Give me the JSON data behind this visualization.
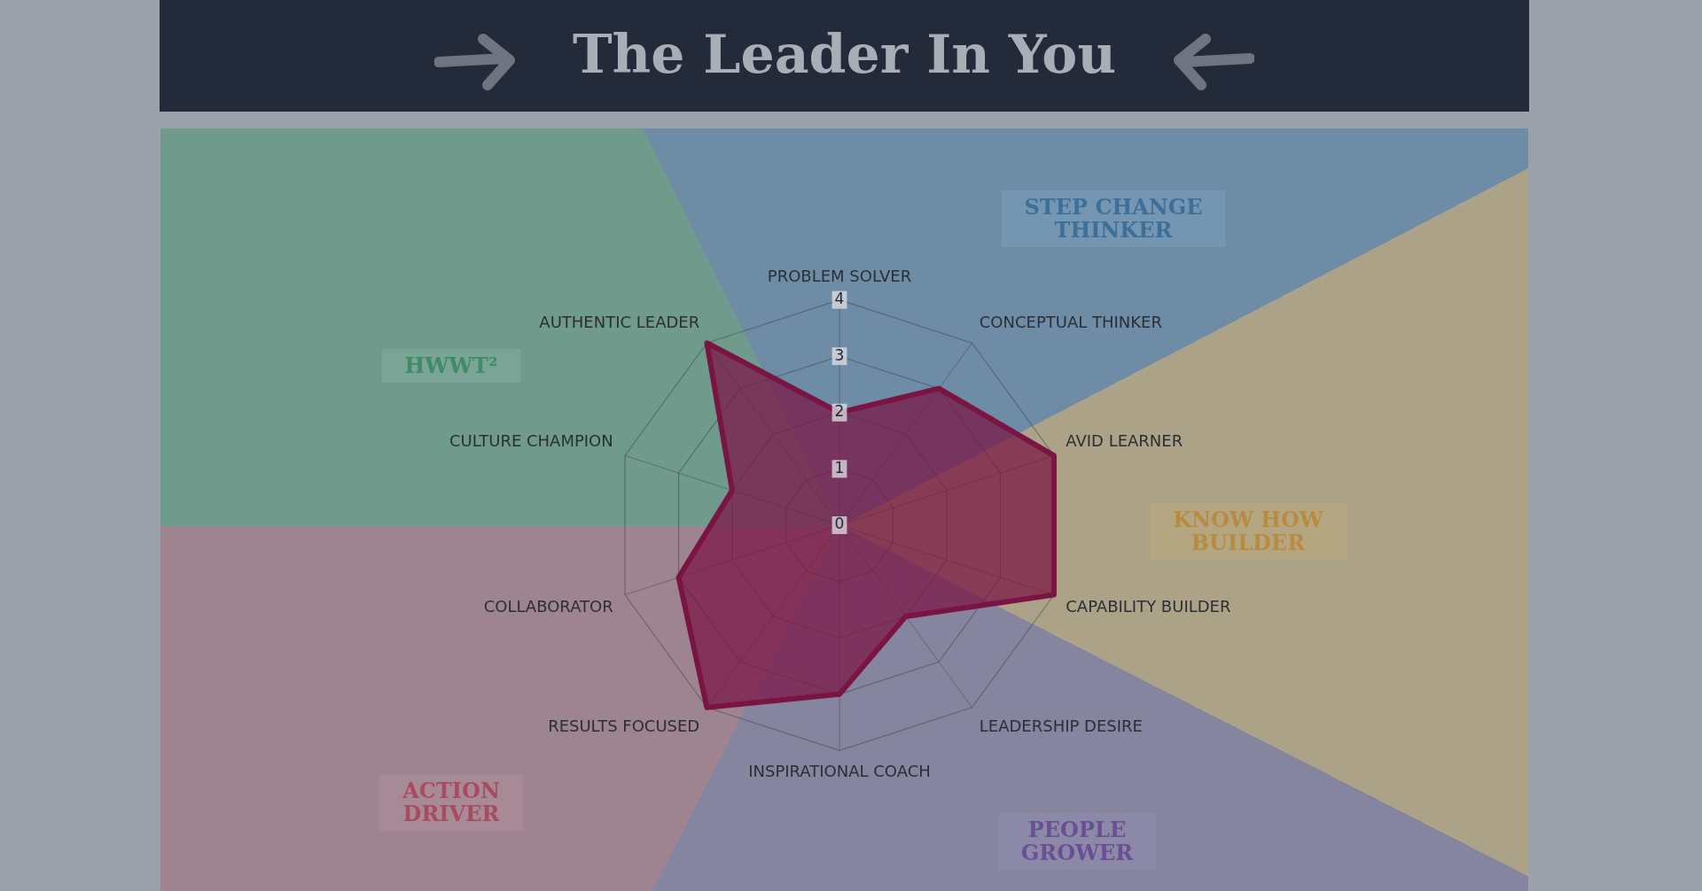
{
  "chart_data": {
    "type": "radar",
    "title": "The Leader In You",
    "categories": [
      "PROBLEM SOLVER",
      "CONCEPTUAL THINKER",
      "AVID LEARNER",
      "CAPABILITY BUILDER",
      "LEADERSHIP DESIRE",
      "INSPIRATIONAL COACH",
      "RESULTS FOCUSED",
      "COLLABORATOR",
      "CULTURE CHAMPION",
      "AUTHENTIC LEADER"
    ],
    "series": [
      {
        "color": "#7a1442",
        "values": [
          2,
          3,
          4,
          4,
          2,
          3,
          4,
          3,
          2,
          4
        ]
      }
    ],
    "ylim": [
      0,
      4
    ],
    "yticks": [
      0,
      1,
      2,
      3,
      4
    ],
    "grid": true,
    "annotations": [
      "STEP CHANGE THINKER",
      "KNOW HOW BUILDER",
      "PEOPLE GROWER",
      "ACTION DRIVER",
      "HWWT²"
    ]
  }
}
